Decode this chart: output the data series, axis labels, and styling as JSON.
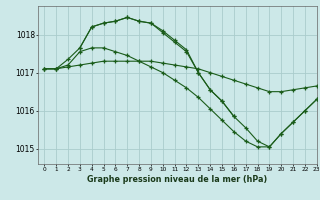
{
  "title": "Graphe pression niveau de la mer (hPa)",
  "bg_color": "#cce8e8",
  "grid_color": "#aacccc",
  "line_color": "#1a5c1a",
  "xlim": [
    -0.5,
    23
  ],
  "ylim": [
    1014.6,
    1018.75
  ],
  "yticks": [
    1015,
    1016,
    1017,
    1018
  ],
  "xticks": [
    0,
    1,
    2,
    3,
    4,
    5,
    6,
    7,
    8,
    9,
    10,
    11,
    12,
    13,
    14,
    15,
    16,
    17,
    18,
    19,
    20,
    21,
    22,
    23
  ],
  "series": [
    {
      "x": [
        0,
        1,
        2,
        3,
        4,
        5,
        6,
        7,
        8,
        9,
        10,
        11,
        12,
        13,
        14,
        15,
        16
      ],
      "y": [
        1017.1,
        1017.1,
        1017.35,
        1017.65,
        1018.2,
        1018.3,
        1018.35,
        1018.45,
        1018.35,
        1018.3,
        1018.1,
        1017.85,
        1017.6,
        1017.0,
        1016.55,
        1016.25,
        1015.85
      ]
    },
    {
      "x": [
        0,
        1,
        2,
        3,
        4,
        5,
        6,
        7,
        8,
        9,
        10,
        11,
        12,
        13,
        14,
        15,
        16,
        17,
        18,
        19,
        20,
        21,
        22,
        23
      ],
      "y": [
        1017.1,
        1017.1,
        1017.15,
        1017.2,
        1017.25,
        1017.3,
        1017.3,
        1017.3,
        1017.3,
        1017.3,
        1017.25,
        1017.2,
        1017.15,
        1017.1,
        1017.0,
        1016.9,
        1016.8,
        1016.7,
        1016.6,
        1016.5,
        1016.5,
        1016.55,
        1016.6,
        1016.65
      ]
    },
    {
      "x": [
        0,
        1,
        2,
        3,
        4,
        5,
        6,
        7,
        8,
        9,
        10,
        11,
        12,
        13,
        14,
        15,
        16,
        17,
        18,
        19,
        20,
        21,
        22,
        23
      ],
      "y": [
        1017.1,
        1017.1,
        1017.2,
        1017.55,
        1017.65,
        1017.65,
        1017.55,
        1017.45,
        1017.3,
        1017.15,
        1017.0,
        1016.8,
        1016.6,
        1016.35,
        1016.05,
        1015.75,
        1015.45,
        1015.2,
        1015.05,
        1015.05,
        1015.4,
        1015.7,
        1016.0,
        1016.3
      ]
    },
    {
      "x": [
        3,
        4,
        5,
        6,
        7,
        8,
        9,
        10,
        11,
        12,
        13,
        14,
        15,
        16,
        17,
        18,
        19,
        20,
        21,
        22,
        23
      ],
      "y": [
        1017.65,
        1018.2,
        1018.3,
        1018.35,
        1018.45,
        1018.35,
        1018.3,
        1018.05,
        1017.8,
        1017.55,
        1017.0,
        1016.55,
        1016.25,
        1015.85,
        1015.55,
        1015.2,
        1015.05,
        1015.4,
        1015.7,
        1016.0,
        1016.3
      ]
    }
  ]
}
